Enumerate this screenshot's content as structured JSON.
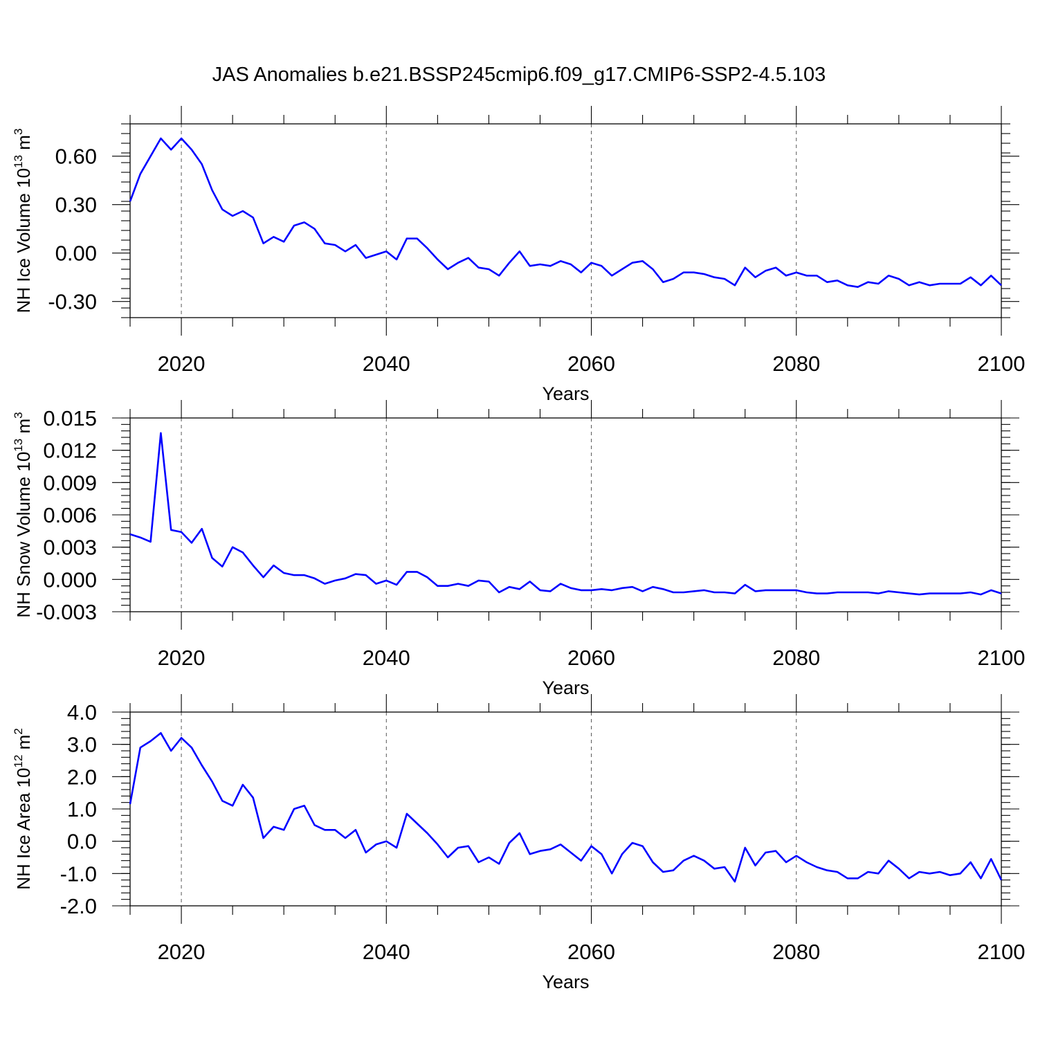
{
  "title": "JAS Anomalies b.e21.BSSP245cmip6.f09_g17.CMIP6-SSP2-4.5.103",
  "line_color": "#0000ff",
  "chart_data": [
    {
      "type": "line",
      "ylabel": "NH Ice Volume 10",
      "ylabel_exp": "13",
      "ylabel_unit": " m",
      "ylabel_unit_exp": "3",
      "xlabel": "Years",
      "xlim": [
        2015,
        2100
      ],
      "ylim": [
        -0.4,
        0.8
      ],
      "yticks": [
        -0.3,
        0.0,
        0.3,
        0.6
      ],
      "ytick_labels": [
        "-0.30",
        "0.00",
        "0.30",
        "0.60"
      ],
      "yminor_step": 0.06,
      "xticks": [
        2020,
        2040,
        2060,
        2080,
        2100
      ],
      "xtick_labels": [
        "2020",
        "2040",
        "2060",
        "2080",
        "2100"
      ],
      "grid": "x-dashed",
      "x": [
        2015,
        2016,
        2017,
        2018,
        2019,
        2020,
        2021,
        2022,
        2023,
        2024,
        2025,
        2026,
        2027,
        2028,
        2029,
        2030,
        2031,
        2032,
        2033,
        2034,
        2035,
        2036,
        2037,
        2038,
        2039,
        2040,
        2041,
        2042,
        2043,
        2044,
        2045,
        2046,
        2047,
        2048,
        2049,
        2050,
        2051,
        2052,
        2053,
        2054,
        2055,
        2056,
        2057,
        2058,
        2059,
        2060,
        2061,
        2062,
        2063,
        2064,
        2065,
        2066,
        2067,
        2068,
        2069,
        2070,
        2071,
        2072,
        2073,
        2074,
        2075,
        2076,
        2077,
        2078,
        2079,
        2080,
        2081,
        2082,
        2083,
        2084,
        2085,
        2086,
        2087,
        2088,
        2089,
        2090,
        2091,
        2092,
        2093,
        2094,
        2095,
        2096,
        2097,
        2098,
        2099,
        2100
      ],
      "values": [
        0.32,
        0.49,
        0.6,
        0.71,
        0.64,
        0.71,
        0.64,
        0.55,
        0.39,
        0.27,
        0.23,
        0.26,
        0.22,
        0.06,
        0.1,
        0.07,
        0.17,
        0.19,
        0.15,
        0.06,
        0.05,
        0.01,
        0.05,
        -0.03,
        -0.01,
        0.01,
        -0.04,
        0.09,
        0.09,
        0.03,
        -0.04,
        -0.1,
        -0.06,
        -0.03,
        -0.09,
        -0.1,
        -0.14,
        -0.06,
        0.01,
        -0.08,
        -0.07,
        -0.08,
        -0.05,
        -0.07,
        -0.12,
        -0.06,
        -0.08,
        -0.14,
        -0.1,
        -0.06,
        -0.05,
        -0.1,
        -0.18,
        -0.16,
        -0.12,
        -0.12,
        -0.13,
        -0.15,
        -0.16,
        -0.2,
        -0.09,
        -0.15,
        -0.11,
        -0.09,
        -0.14,
        -0.12,
        -0.14,
        -0.14,
        -0.18,
        -0.17,
        -0.2,
        -0.21,
        -0.18,
        -0.19,
        -0.14,
        -0.16,
        -0.2,
        -0.18,
        -0.2,
        -0.19,
        -0.19,
        -0.19,
        -0.15,
        -0.2,
        -0.14,
        -0.2
      ]
    },
    {
      "type": "line",
      "ylabel": "NH Snow Volume 10",
      "ylabel_exp": "13",
      "ylabel_unit": " m",
      "ylabel_unit_exp": "3",
      "xlabel": "Years",
      "xlim": [
        2015,
        2100
      ],
      "ylim": [
        -0.003,
        0.015
      ],
      "yticks": [
        -0.003,
        0.0,
        0.003,
        0.006,
        0.009,
        0.012,
        0.015
      ],
      "ytick_labels": [
        "-0.003",
        "0.000",
        "0.003",
        "0.006",
        "0.009",
        "0.012",
        "0.015"
      ],
      "yminor_step": 0.0006,
      "xticks": [
        2020,
        2040,
        2060,
        2080,
        2100
      ],
      "xtick_labels": [
        "2020",
        "2040",
        "2060",
        "2080",
        "2100"
      ],
      "grid": "x-dashed",
      "x": [
        2015,
        2016,
        2017,
        2018,
        2019,
        2020,
        2021,
        2022,
        2023,
        2024,
        2025,
        2026,
        2027,
        2028,
        2029,
        2030,
        2031,
        2032,
        2033,
        2034,
        2035,
        2036,
        2037,
        2038,
        2039,
        2040,
        2041,
        2042,
        2043,
        2044,
        2045,
        2046,
        2047,
        2048,
        2049,
        2050,
        2051,
        2052,
        2053,
        2054,
        2055,
        2056,
        2057,
        2058,
        2059,
        2060,
        2061,
        2062,
        2063,
        2064,
        2065,
        2066,
        2067,
        2068,
        2069,
        2070,
        2071,
        2072,
        2073,
        2074,
        2075,
        2076,
        2077,
        2078,
        2079,
        2080,
        2081,
        2082,
        2083,
        2084,
        2085,
        2086,
        2087,
        2088,
        2089,
        2090,
        2091,
        2092,
        2093,
        2094,
        2095,
        2096,
        2097,
        2098,
        2099,
        2100
      ],
      "values": [
        0.0042,
        0.0039,
        0.0035,
        0.0136,
        0.0046,
        0.0044,
        0.0034,
        0.0047,
        0.002,
        0.0012,
        0.003,
        0.0025,
        0.0013,
        0.0002,
        0.0013,
        0.0006,
        0.0004,
        0.0004,
        0.0001,
        -0.0004,
        -0.0001,
        0.0001,
        0.0005,
        0.0004,
        -0.0004,
        -0.0001,
        -0.0005,
        0.0007,
        0.0007,
        0.0002,
        -0.0006,
        -0.0006,
        -0.0004,
        -0.0006,
        -0.0001,
        -0.0002,
        -0.0012,
        -0.0007,
        -0.0009,
        -0.0002,
        -0.001,
        -0.0011,
        -0.0004,
        -0.0008,
        -0.001,
        -0.001,
        -0.0009,
        -0.001,
        -0.0008,
        -0.0007,
        -0.0011,
        -0.0007,
        -0.0009,
        -0.0012,
        -0.0012,
        -0.0011,
        -0.001,
        -0.0012,
        -0.0012,
        -0.0013,
        -0.0005,
        -0.0011,
        -0.001,
        -0.001,
        -0.001,
        -0.001,
        -0.0012,
        -0.0013,
        -0.0013,
        -0.0012,
        -0.0012,
        -0.0012,
        -0.0012,
        -0.0013,
        -0.0011,
        -0.0012,
        -0.0013,
        -0.0014,
        -0.0013,
        -0.0013,
        -0.0013,
        -0.0013,
        -0.0012,
        -0.0014,
        -0.001,
        -0.0013
      ]
    },
    {
      "type": "line",
      "ylabel": "NH Ice Area 10",
      "ylabel_exp": "12",
      "ylabel_unit": " m",
      "ylabel_unit_exp": "2",
      "xlabel": "Years",
      "xlim": [
        2015,
        2100
      ],
      "ylim": [
        -2.0,
        4.0
      ],
      "yticks": [
        -2.0,
        -1.0,
        0.0,
        1.0,
        2.0,
        3.0,
        4.0
      ],
      "ytick_labels": [
        "-2.0",
        "-1.0",
        "0.0",
        "1.0",
        "2.0",
        "3.0",
        "4.0"
      ],
      "yminor_step": 0.2,
      "xticks": [
        2020,
        2040,
        2060,
        2080,
        2100
      ],
      "xtick_labels": [
        "2020",
        "2040",
        "2060",
        "2080",
        "2100"
      ],
      "grid": "x-dashed",
      "x": [
        2015,
        2016,
        2017,
        2018,
        2019,
        2020,
        2021,
        2022,
        2023,
        2024,
        2025,
        2026,
        2027,
        2028,
        2029,
        2030,
        2031,
        2032,
        2033,
        2034,
        2035,
        2036,
        2037,
        2038,
        2039,
        2040,
        2041,
        2042,
        2043,
        2044,
        2045,
        2046,
        2047,
        2048,
        2049,
        2050,
        2051,
        2052,
        2053,
        2054,
        2055,
        2056,
        2057,
        2058,
        2059,
        2060,
        2061,
        2062,
        2063,
        2064,
        2065,
        2066,
        2067,
        2068,
        2069,
        2070,
        2071,
        2072,
        2073,
        2074,
        2075,
        2076,
        2077,
        2078,
        2079,
        2080,
        2081,
        2082,
        2083,
        2084,
        2085,
        2086,
        2087,
        2088,
        2089,
        2090,
        2091,
        2092,
        2093,
        2094,
        2095,
        2096,
        2097,
        2098,
        2099,
        2100
      ],
      "values": [
        1.15,
        2.9,
        3.1,
        3.35,
        2.8,
        3.2,
        2.9,
        2.35,
        1.85,
        1.25,
        1.1,
        1.75,
        1.35,
        0.1,
        0.45,
        0.35,
        1.0,
        1.1,
        0.5,
        0.35,
        0.35,
        0.1,
        0.35,
        -0.35,
        -0.1,
        0.0,
        -0.2,
        0.85,
        0.55,
        0.25,
        -0.1,
        -0.5,
        -0.2,
        -0.15,
        -0.65,
        -0.5,
        -0.7,
        -0.05,
        0.25,
        -0.4,
        -0.3,
        -0.25,
        -0.1,
        -0.35,
        -0.6,
        -0.15,
        -0.4,
        -1.0,
        -0.4,
        -0.05,
        -0.15,
        -0.65,
        -0.95,
        -0.9,
        -0.6,
        -0.45,
        -0.6,
        -0.85,
        -0.8,
        -1.25,
        -0.2,
        -0.75,
        -0.35,
        -0.3,
        -0.65,
        -0.45,
        -0.65,
        -0.8,
        -0.9,
        -0.95,
        -1.15,
        -1.15,
        -0.95,
        -1.0,
        -0.6,
        -0.85,
        -1.15,
        -0.95,
        -1.0,
        -0.95,
        -1.05,
        -1.0,
        -0.65,
        -1.15,
        -0.55,
        -1.2
      ]
    }
  ]
}
